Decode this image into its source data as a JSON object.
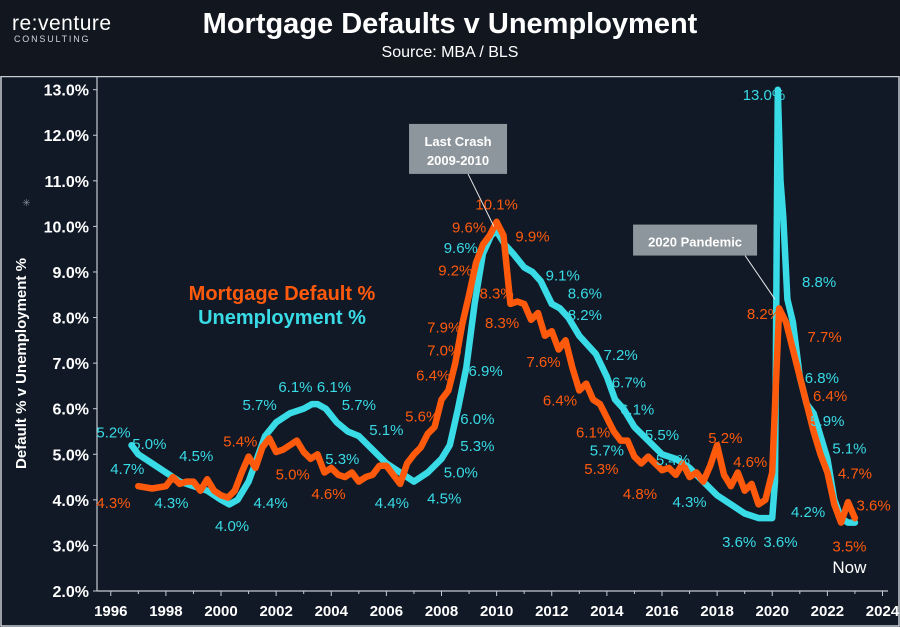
{
  "header": {
    "logo_brand": "re:venture",
    "logo_sub": "CONSULTING",
    "title": "Mortgage Defaults v Unemployment",
    "subtitle": "Source: MBA / BLS"
  },
  "colors": {
    "default": "#ff5a0c",
    "unemployment": "#38dbe6",
    "callout": "#8d969c",
    "background": "#111926"
  },
  "chart_data": {
    "type": "line",
    "title": "Mortgage Defaults v Unemployment",
    "subtitle": "Source: MBA / BLS",
    "ylabel": "Default % v Unemployment %",
    "xlabel": "",
    "xlim": [
      1995.5,
      2024.2
    ],
    "ylim": [
      2.0,
      13.3
    ],
    "y_ticks": [
      2.0,
      3.0,
      4.0,
      5.0,
      6.0,
      7.0,
      8.0,
      9.0,
      10.0,
      11.0,
      12.0,
      13.0
    ],
    "y_tick_labels": [
      "2.0%",
      "3.0%",
      "4.0%",
      "5.0%",
      "6.0%",
      "7.0%",
      "8.0%",
      "9.0%",
      "10.0%",
      "11.0%",
      "12.0%",
      "13.0%"
    ],
    "x_ticks": [
      1996,
      1998,
      2000,
      2002,
      2004,
      2006,
      2008,
      2010,
      2012,
      2014,
      2016,
      2018,
      2020,
      2022,
      2024
    ],
    "x_tick_labels": [
      "1996",
      "1998",
      "2000",
      "2002",
      "2004",
      "2006",
      "2008",
      "2010",
      "2012",
      "2014",
      "2016",
      "2018",
      "2020",
      "2022",
      "2024"
    ],
    "grid": false,
    "legend": {
      "position": "left-middle",
      "entries": [
        "Mortgage Default %",
        "Unemployment %"
      ]
    },
    "series": [
      {
        "name": "Mortgage Default %",
        "color": "#ff5a0c",
        "x": [
          1997.0,
          1997.5,
          1998.0,
          1998.25,
          1998.5,
          1998.75,
          1999.0,
          1999.25,
          1999.5,
          1999.75,
          2000.0,
          2000.25,
          2000.5,
          2000.75,
          2001.0,
          2001.25,
          2001.5,
          2001.75,
          2002.0,
          2002.25,
          2002.5,
          2002.75,
          2003.0,
          2003.25,
          2003.5,
          2003.75,
          2004.0,
          2004.25,
          2004.5,
          2004.75,
          2005.0,
          2005.25,
          2005.5,
          2005.75,
          2006.0,
          2006.25,
          2006.5,
          2006.75,
          2007.0,
          2007.25,
          2007.5,
          2007.75,
          2008.0,
          2008.25,
          2008.5,
          2008.75,
          2009.0,
          2009.25,
          2009.5,
          2009.75,
          2010.0,
          2010.25,
          2010.5,
          2010.75,
          2011.0,
          2011.25,
          2011.5,
          2011.75,
          2012.0,
          2012.25,
          2012.5,
          2012.75,
          2013.0,
          2013.25,
          2013.5,
          2013.75,
          2014.0,
          2014.25,
          2014.5,
          2014.75,
          2015.0,
          2015.25,
          2015.5,
          2015.75,
          2016.0,
          2016.25,
          2016.5,
          2016.75,
          2017.0,
          2017.25,
          2017.5,
          2017.75,
          2018.0,
          2018.25,
          2018.5,
          2018.75,
          2019.0,
          2019.25,
          2019.5,
          2019.75,
          2020.0,
          2020.25,
          2020.5,
          2020.75,
          2021.0,
          2021.25,
          2021.5,
          2021.75,
          2022.0,
          2022.25,
          2022.5,
          2022.75,
          2023.0
        ],
        "values": [
          4.3,
          4.25,
          4.3,
          4.5,
          4.35,
          4.4,
          4.4,
          4.2,
          4.45,
          4.2,
          4.1,
          4.05,
          4.2,
          4.6,
          4.95,
          4.7,
          5.15,
          5.35,
          5.05,
          5.1,
          5.2,
          5.3,
          5.05,
          4.9,
          5.0,
          4.6,
          4.7,
          4.55,
          4.5,
          4.6,
          4.4,
          4.5,
          4.55,
          4.75,
          4.75,
          4.55,
          4.35,
          4.8,
          5.0,
          5.15,
          5.45,
          5.6,
          6.2,
          6.4,
          7.0,
          7.85,
          8.5,
          9.2,
          9.6,
          9.8,
          10.1,
          9.8,
          8.3,
          8.35,
          8.3,
          7.95,
          8.1,
          7.6,
          7.7,
          7.3,
          7.5,
          6.9,
          6.4,
          6.55,
          6.2,
          6.1,
          5.8,
          5.5,
          5.3,
          5.3,
          4.95,
          4.8,
          4.95,
          4.8,
          4.65,
          4.7,
          4.55,
          4.8,
          4.5,
          4.6,
          4.4,
          4.75,
          5.2,
          4.55,
          4.3,
          4.6,
          4.2,
          4.35,
          3.9,
          4.0,
          4.6,
          8.2,
          7.9,
          7.3,
          6.7,
          6.1,
          5.5,
          5.0,
          4.6,
          3.9,
          3.5,
          3.95,
          3.6
        ]
      },
      {
        "name": "Unemployment %",
        "color": "#38dbe6",
        "x": [
          1996.75,
          1997.0,
          1997.5,
          1998.0,
          1998.5,
          1999.0,
          1999.5,
          2000.0,
          2000.3,
          2000.6,
          2001.0,
          2001.3,
          2001.6,
          2002.0,
          2002.5,
          2003.0,
          2003.3,
          2003.5,
          2003.8,
          2004.2,
          2004.6,
          2005.0,
          2005.5,
          2006.0,
          2006.5,
          2007.0,
          2007.5,
          2008.0,
          2008.3,
          2008.6,
          2008.9,
          2009.2,
          2009.5,
          2009.8,
          2010.0,
          2010.3,
          2010.6,
          2011.0,
          2011.3,
          2011.6,
          2012.0,
          2012.3,
          2012.6,
          2013.0,
          2013.3,
          2013.6,
          2014.0,
          2014.3,
          2014.6,
          2015.0,
          2015.5,
          2016.0,
          2016.5,
          2017.0,
          2017.5,
          2018.0,
          2018.5,
          2019.0,
          2019.5,
          2020.0,
          2020.1,
          2020.2,
          2020.3,
          2020.4,
          2020.55,
          2020.75,
          2021.0,
          2021.25,
          2021.5,
          2021.75,
          2022.0,
          2022.25,
          2022.5,
          2022.75,
          2023.0
        ],
        "values": [
          5.2,
          5.0,
          4.8,
          4.6,
          4.4,
          4.3,
          4.2,
          4.0,
          3.9,
          4.0,
          4.4,
          4.9,
          5.4,
          5.7,
          5.9,
          6.0,
          6.1,
          6.1,
          6.0,
          5.7,
          5.5,
          5.4,
          5.1,
          4.8,
          4.6,
          4.4,
          4.6,
          4.9,
          5.2,
          6.0,
          6.9,
          8.3,
          9.4,
          9.8,
          9.9,
          9.6,
          9.4,
          9.1,
          9.0,
          8.8,
          8.3,
          8.2,
          8.0,
          7.6,
          7.4,
          7.2,
          6.7,
          6.2,
          6.0,
          5.6,
          5.3,
          5.0,
          4.9,
          4.7,
          4.4,
          4.1,
          3.9,
          3.7,
          3.6,
          3.6,
          4.4,
          13.0,
          11.0,
          10.2,
          8.4,
          7.9,
          6.7,
          6.1,
          5.9,
          5.4,
          4.9,
          4.0,
          3.6,
          3.5,
          3.5
        ]
      }
    ],
    "data_labels": [
      {
        "series": "Unemployment %",
        "text": "5.2%",
        "x": 1996.1,
        "y": 5.5
      },
      {
        "series": "Unemployment %",
        "text": "5.0%",
        "x": 1997.4,
        "y": 5.25
      },
      {
        "series": "Unemployment %",
        "text": "4.7%",
        "x": 1996.6,
        "y": 4.7
      },
      {
        "series": "Default %",
        "text": "4.3%",
        "x": 1996.1,
        "y": 3.95
      },
      {
        "series": "Unemployment %",
        "text": "4.3%",
        "x": 1998.2,
        "y": 3.95
      },
      {
        "series": "Unemployment %",
        "text": "4.5%",
        "x": 1999.1,
        "y": 4.98
      },
      {
        "series": "Unemployment %",
        "text": "4.0%",
        "x": 2000.4,
        "y": 3.45
      },
      {
        "series": "Default %",
        "text": "5.4%",
        "x": 2000.7,
        "y": 5.3
      },
      {
        "series": "Unemployment %",
        "text": "5.7%",
        "x": 2001.4,
        "y": 6.1
      },
      {
        "series": "Unemployment %",
        "text": "4.4%",
        "x": 2001.8,
        "y": 3.95
      },
      {
        "series": "Unemployment %",
        "text": "6.1%",
        "x": 2002.7,
        "y": 6.5
      },
      {
        "series": "Unemployment %",
        "text": "6.1%",
        "x": 2004.1,
        "y": 6.5
      },
      {
        "series": "Default %",
        "text": "5.0%",
        "x": 2002.6,
        "y": 4.58
      },
      {
        "series": "Default %",
        "text": "4.6%",
        "x": 2003.9,
        "y": 4.15
      },
      {
        "series": "Unemployment %",
        "text": "5.7%",
        "x": 2005.0,
        "y": 6.1
      },
      {
        "series": "Unemployment %",
        "text": "5.3%",
        "x": 2004.4,
        "y": 4.92
      },
      {
        "series": "Unemployment %",
        "text": "5.1%",
        "x": 2006.0,
        "y": 5.55
      },
      {
        "series": "Unemployment %",
        "text": "4.4%",
        "x": 2006.2,
        "y": 3.95
      },
      {
        "series": "Default %",
        "text": "5.6%",
        "x": 2007.3,
        "y": 5.85
      },
      {
        "series": "Unemployment %",
        "text": "4.5%",
        "x": 2008.1,
        "y": 4.05
      },
      {
        "series": "Unemployment %",
        "text": "5.0%",
        "x": 2008.7,
        "y": 4.62
      },
      {
        "series": "Unemployment %",
        "text": "5.3%",
        "x": 2009.3,
        "y": 5.2
      },
      {
        "series": "Unemployment %",
        "text": "6.0%",
        "x": 2009.3,
        "y": 5.8
      },
      {
        "series": "Unemployment %",
        "text": "6.9%",
        "x": 2009.6,
        "y": 6.85
      },
      {
        "series": "Default %",
        "text": "6.4%",
        "x": 2007.7,
        "y": 6.75
      },
      {
        "series": "Default %",
        "text": "7.0%",
        "x": 2008.1,
        "y": 7.3
      },
      {
        "series": "Default %",
        "text": "7.9%",
        "x": 2008.1,
        "y": 7.8
      },
      {
        "series": "Default %",
        "text": "9.2%",
        "x": 2008.5,
        "y": 9.05
      },
      {
        "series": "Unemployment %",
        "text": "9.6%",
        "x": 2008.7,
        "y": 9.55
      },
      {
        "series": "Default %",
        "text": "9.6%",
        "x": 2009.0,
        "y": 10.0
      },
      {
        "series": "Default %",
        "text": "10.1%",
        "x": 2010.0,
        "y": 10.5
      },
      {
        "series": "Default %",
        "text": "9.9%",
        "x": 2011.3,
        "y": 9.8
      },
      {
        "series": "Default %",
        "text": "8.3%",
        "x": 2010.0,
        "y": 8.55
      },
      {
        "series": "Default %",
        "text": "8.3%",
        "x": 2010.2,
        "y": 7.9
      },
      {
        "series": "Unemployment %",
        "text": "9.1%",
        "x": 2012.4,
        "y": 8.95
      },
      {
        "series": "Unemployment %",
        "text": "8.6%",
        "x": 2013.2,
        "y": 8.55
      },
      {
        "series": "Unemployment %",
        "text": "8.2%",
        "x": 2013.2,
        "y": 8.08
      },
      {
        "series": "Default %",
        "text": "7.6%",
        "x": 2011.7,
        "y": 7.05
      },
      {
        "series": "Unemployment %",
        "text": "7.2%",
        "x": 2014.5,
        "y": 7.2
      },
      {
        "series": "Unemployment %",
        "text": "6.7%",
        "x": 2014.8,
        "y": 6.6
      },
      {
        "series": "Default %",
        "text": "6.4%",
        "x": 2012.3,
        "y": 6.2
      },
      {
        "series": "Unemployment %",
        "text": "6.1%",
        "x": 2015.1,
        "y": 6.0
      },
      {
        "series": "Default %",
        "text": "6.1%",
        "x": 2013.5,
        "y": 5.5
      },
      {
        "series": "Unemployment %",
        "text": "5.7%",
        "x": 2014.0,
        "y": 5.1
      },
      {
        "series": "Unemployment %",
        "text": "5.5%",
        "x": 2016.0,
        "y": 5.45
      },
      {
        "series": "Unemployment %",
        "text": "5.4%",
        "x": 2016.4,
        "y": 4.9
      },
      {
        "series": "Default %",
        "text": "5.3%",
        "x": 2013.8,
        "y": 4.7
      },
      {
        "series": "Default %",
        "text": "4.8%",
        "x": 2015.2,
        "y": 4.15
      },
      {
        "series": "Unemployment %",
        "text": "4.3%",
        "x": 2017.0,
        "y": 3.98
      },
      {
        "series": "Default %",
        "text": "5.2%",
        "x": 2018.3,
        "y": 5.38
      },
      {
        "series": "Default %",
        "text": "4.6%",
        "x": 2019.2,
        "y": 4.85
      },
      {
        "series": "Unemployment %",
        "text": "3.6%",
        "x": 2018.8,
        "y": 3.1
      },
      {
        "series": "Unemployment %",
        "text": "3.6%",
        "x": 2020.3,
        "y": 3.1
      },
      {
        "series": "Unemployment %",
        "text": "13.0%",
        "x": 2019.7,
        "y": 12.9
      },
      {
        "series": "Default %",
        "text": "8.2%",
        "x": 2019.7,
        "y": 8.1
      },
      {
        "series": "Unemployment %",
        "text": "8.8%",
        "x": 2021.7,
        "y": 8.8
      },
      {
        "series": "Default %",
        "text": "7.7%",
        "x": 2021.9,
        "y": 7.6
      },
      {
        "series": "Unemployment %",
        "text": "6.8%",
        "x": 2021.8,
        "y": 6.7
      },
      {
        "series": "Default %",
        "text": "6.4%",
        "x": 2022.1,
        "y": 6.3
      },
      {
        "series": "Unemployment %",
        "text": "5.9%",
        "x": 2022.0,
        "y": 5.75
      },
      {
        "series": "Unemployment %",
        "text": "4.2%",
        "x": 2021.3,
        "y": 3.75
      },
      {
        "series": "Unemployment %",
        "text": "5.1%",
        "x": 2022.8,
        "y": 5.15
      },
      {
        "series": "Default %",
        "text": "4.7%",
        "x": 2023.0,
        "y": 4.6
      },
      {
        "series": "Default %",
        "text": "3.5%",
        "x": 2022.8,
        "y": 3.0
      },
      {
        "series": "Default %",
        "text": "3.6%",
        "x": 2024.3,
        "y": 3.9
      }
    ],
    "annotations": [
      {
        "text_lines": [
          "Last Crash",
          "2009-2010"
        ],
        "ax": 2008.6,
        "ay": 11.7,
        "x": 2009.9,
        "y": 10.0
      },
      {
        "text_lines": [
          "2020 Pandemic"
        ],
        "ax": 2017.2,
        "ay": 9.7,
        "x": 2020.1,
        "y": 8.4
      },
      {
        "text_lines": [
          "Now"
        ],
        "ax": 2022.8,
        "ay": 2.4
      }
    ]
  }
}
